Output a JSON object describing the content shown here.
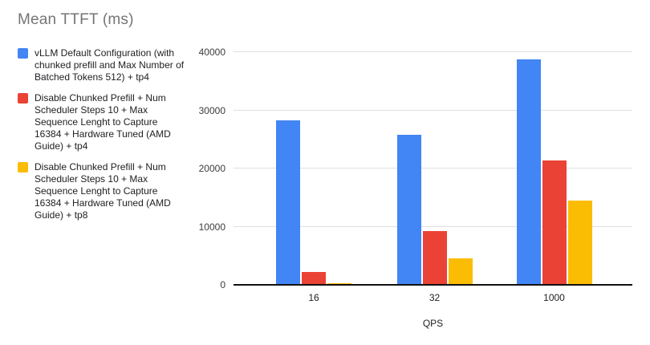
{
  "title": "Mean TTFT (ms)",
  "chart_data": {
    "type": "bar",
    "title": "Mean TTFT (ms)",
    "xlabel": "QPS",
    "ylabel": "",
    "categories": [
      "16",
      "32",
      "1000"
    ],
    "series": [
      {
        "name": "vLLM Default Configuration (with chunked prefill and Max Number of Batched Tokens 512) + tp4",
        "color": "#4285F4",
        "values": [
          28300,
          25800,
          38800
        ]
      },
      {
        "name": "Disable Chunked Prefill + Num Scheduler Steps 10 + Max Sequence Lenght to Capture 16384 + Hardware Tuned (AMD Guide) + tp4",
        "color": "#EA4335",
        "values": [
          2200,
          9300,
          21400
        ]
      },
      {
        "name": "Disable Chunked Prefill + Num Scheduler Steps 10 + Max Sequence Lenght to Capture 16384 + Hardware Tuned (AMD Guide) + tp8",
        "color": "#FBBC04",
        "values": [
          250,
          4500,
          14500
        ]
      }
    ],
    "ylim": [
      0,
      40000
    ],
    "yticks": [
      0,
      10000,
      20000,
      30000,
      40000
    ],
    "grid": true,
    "legend_position": "left",
    "colors": {
      "title_text": "#757575",
      "legend_text": "#202124",
      "axis_text": "#3c3c3c",
      "gridline": "#e0e0e0",
      "axis_line": "#111111"
    }
  }
}
